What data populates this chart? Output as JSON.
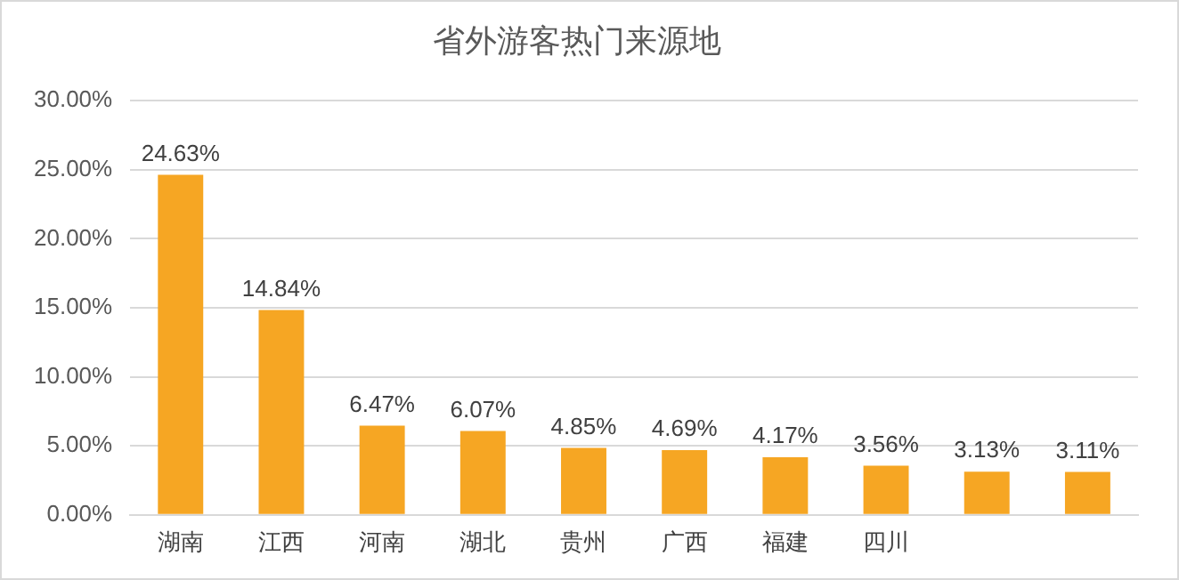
{
  "chart_data": {
    "type": "bar",
    "title": "省外游客热门来源地",
    "categories": [
      "湖南",
      "江西",
      "河南",
      "湖北",
      "贵州",
      "广西",
      "福建",
      "四川",
      null,
      null
    ],
    "values": [
      24.63,
      14.84,
      6.47,
      6.07,
      4.85,
      4.69,
      4.17,
      3.56,
      3.13,
      3.11
    ],
    "value_labels": [
      "24.63%",
      "14.84%",
      "6.47%",
      "6.07%",
      "4.85%",
      "4.69%",
      "4.17%",
      "3.56%",
      "3.13%",
      "3.11%"
    ],
    "color": "#f6a623",
    "ylim": [
      0,
      30
    ],
    "yticks": [
      {
        "value": 0,
        "label": "0.00%"
      },
      {
        "value": 5,
        "label": "5.00%"
      },
      {
        "value": 10,
        "label": "10.00%"
      },
      {
        "value": 15,
        "label": "15.00%"
      },
      {
        "value": 20,
        "label": "20.00%"
      },
      {
        "value": 25,
        "label": "25.00%"
      },
      {
        "value": 30,
        "label": "30.00%"
      }
    ],
    "grid": "y",
    "legend": false
  }
}
